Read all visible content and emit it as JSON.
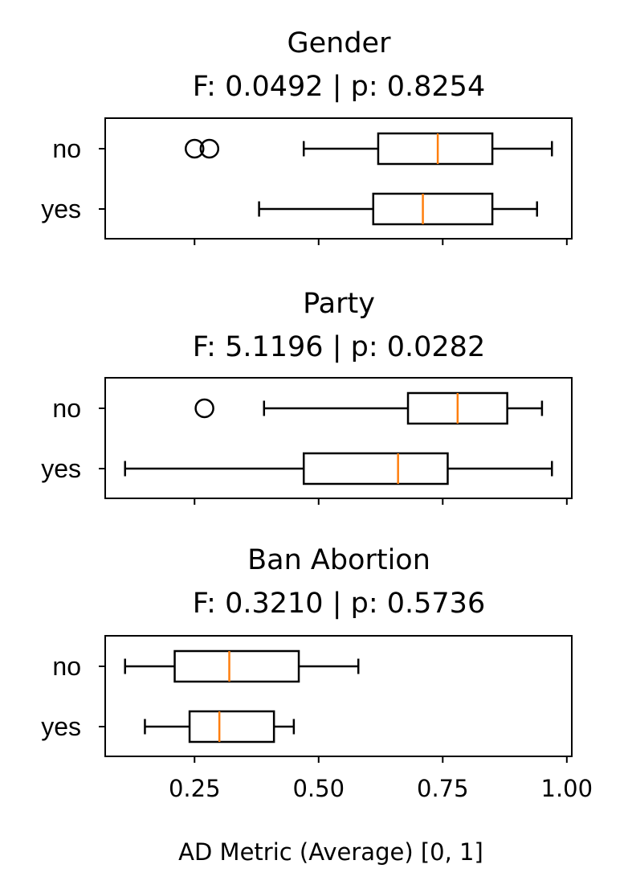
{
  "chart_data": [
    {
      "type": "box",
      "title": "Gender",
      "subtitle": "F: 0.0492 | p: 0.8254",
      "categories": [
        "no",
        "yes"
      ],
      "boxes": [
        {
          "category": "no",
          "whislo": 0.47,
          "q1": 0.62,
          "median": 0.74,
          "q3": 0.85,
          "whishi": 0.97,
          "outliers": [
            0.25,
            0.28
          ]
        },
        {
          "category": "yes",
          "whislo": 0.38,
          "q1": 0.61,
          "median": 0.71,
          "q3": 0.85,
          "whishi": 0.94,
          "outliers": []
        }
      ]
    },
    {
      "type": "box",
      "title": "Party",
      "subtitle": "F: 5.1196 | p: 0.0282",
      "categories": [
        "no",
        "yes"
      ],
      "boxes": [
        {
          "category": "no",
          "whislo": 0.39,
          "q1": 0.68,
          "median": 0.78,
          "q3": 0.88,
          "whishi": 0.95,
          "outliers": [
            0.27
          ]
        },
        {
          "category": "yes",
          "whislo": 0.11,
          "q1": 0.47,
          "median": 0.66,
          "q3": 0.76,
          "whishi": 0.97,
          "outliers": []
        }
      ]
    },
    {
      "type": "box",
      "title": "Ban Abortion",
      "subtitle": "F: 0.3210 | p: 0.5736",
      "categories": [
        "no",
        "yes"
      ],
      "boxes": [
        {
          "category": "no",
          "whislo": 0.11,
          "q1": 0.21,
          "median": 0.32,
          "q3": 0.46,
          "whishi": 0.58,
          "outliers": []
        },
        {
          "category": "yes",
          "whislo": 0.15,
          "q1": 0.24,
          "median": 0.3,
          "q3": 0.41,
          "whishi": 0.45,
          "outliers": []
        }
      ]
    }
  ],
  "shared_x_axis": {
    "label": "AD Metric (Average) [0, 1]",
    "xlim": [
      0.07,
      1.01
    ],
    "ticks": [
      0.25,
      0.5,
      0.75,
      1.0
    ],
    "tick_labels": [
      "0.25",
      "0.50",
      "0.75",
      "1.00"
    ]
  },
  "colors": {
    "median": "#ff7f0e",
    "box": "#000000"
  }
}
